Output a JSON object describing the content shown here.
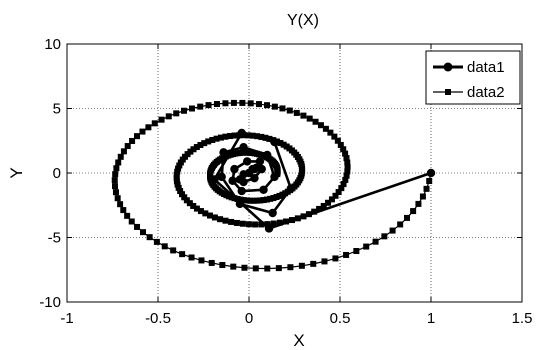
{
  "chart_data": {
    "type": "line",
    "title": "Y(X)",
    "xlabel": "X",
    "ylabel": "Y",
    "xlim": [
      -1,
      1.5
    ],
    "ylim": [
      -10,
      10
    ],
    "xticks": [
      -1,
      -0.5,
      0,
      0.5,
      1,
      1.5
    ],
    "yticks": [
      -10,
      -5,
      0,
      5,
      10
    ],
    "xtick_labels": [
      "-1",
      "-0.5",
      "0",
      "0.5",
      "1",
      "1.5"
    ],
    "ytick_labels": [
      "-10",
      "-5",
      "0",
      "5",
      "10"
    ],
    "grid": true,
    "legend_position": "top-right",
    "series": [
      {
        "name": "data1",
        "marker": "circle",
        "line_weight": "thick",
        "color": "#000000",
        "x": [
          1.0,
          0.11,
          -0.19,
          -0.04,
          0.14,
          0.23,
          0.13,
          -0.05,
          -0.15,
          -0.14,
          -0.03,
          0.1,
          0.14,
          0.08,
          -0.04,
          -0.09,
          -0.08,
          -0.01,
          0.06,
          0.07,
          0.03,
          -0.03,
          -0.05,
          -0.03,
          0.02,
          0.04,
          0.03,
          0.0
        ],
        "y": [
          0.0,
          -4.3,
          -0.5,
          3.1,
          2.4,
          -1.2,
          -3.1,
          -2.4,
          -0.3,
          1.6,
          2.0,
          1.4,
          -0.3,
          -1.3,
          -1.4,
          -0.6,
          0.3,
          0.9,
          0.9,
          0.3,
          -0.4,
          -0.7,
          -0.5,
          -0.1,
          0.3,
          0.4,
          0.3,
          0.0
        ]
      },
      {
        "name": "data2",
        "marker": "square",
        "line_weight": "thin",
        "color": "#000000",
        "spiral": {
          "radius_start": 1.0,
          "decay": 0.12,
          "omega": 1.22,
          "y_scale": 8.6,
          "t_start": 0,
          "t_end": 15.5
        }
      }
    ]
  }
}
